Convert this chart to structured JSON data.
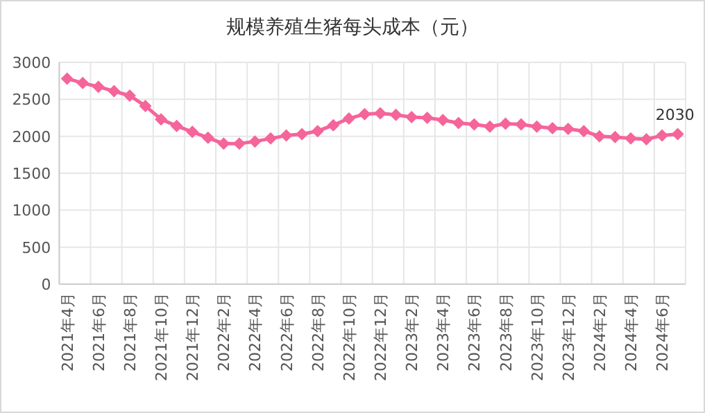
{
  "chart_data": {
    "type": "line",
    "title": "规模养殖生猪每头成本（元）",
    "categories": [
      "2021年4月",
      null,
      "2021年6月",
      null,
      "2021年8月",
      null,
      "2021年10月",
      null,
      "2021年12月",
      null,
      "2022年2月",
      null,
      "2022年4月",
      null,
      "2022年6月",
      null,
      "2022年8月",
      null,
      "2022年10月",
      null,
      "2022年12月",
      null,
      "2023年2月",
      null,
      "2023年4月",
      null,
      "2023年6月",
      null,
      "2023年8月",
      null,
      "2023年10月",
      null,
      "2023年12月",
      null,
      "2024年2月",
      null,
      "2024年4月",
      null,
      "2024年6月",
      null
    ],
    "values": [
      2780,
      2720,
      2670,
      2610,
      2550,
      2410,
      2230,
      2140,
      2060,
      1980,
      1900,
      1900,
      1930,
      1970,
      2010,
      2030,
      2070,
      2150,
      2240,
      2300,
      2310,
      2290,
      2260,
      2250,
      2220,
      2180,
      2160,
      2130,
      2170,
      2160,
      2130,
      2110,
      2100,
      2070,
      2000,
      1990,
      1970,
      1960,
      2010,
      2030
    ],
    "value_labels": [
      null,
      null,
      null,
      null,
      null,
      null,
      null,
      null,
      null,
      null,
      null,
      null,
      null,
      null,
      null,
      null,
      null,
      null,
      null,
      null,
      null,
      null,
      null,
      null,
      null,
      null,
      null,
      null,
      null,
      null,
      null,
      null,
      null,
      null,
      null,
      null,
      null,
      null,
      null,
      "2030"
    ],
    "color": "#f5649a",
    "marker": "diamond",
    "grid": true,
    "ylim": [
      0,
      3000
    ],
    "yticks": [
      0,
      500,
      1000,
      1500,
      2000,
      2500,
      3000
    ]
  }
}
